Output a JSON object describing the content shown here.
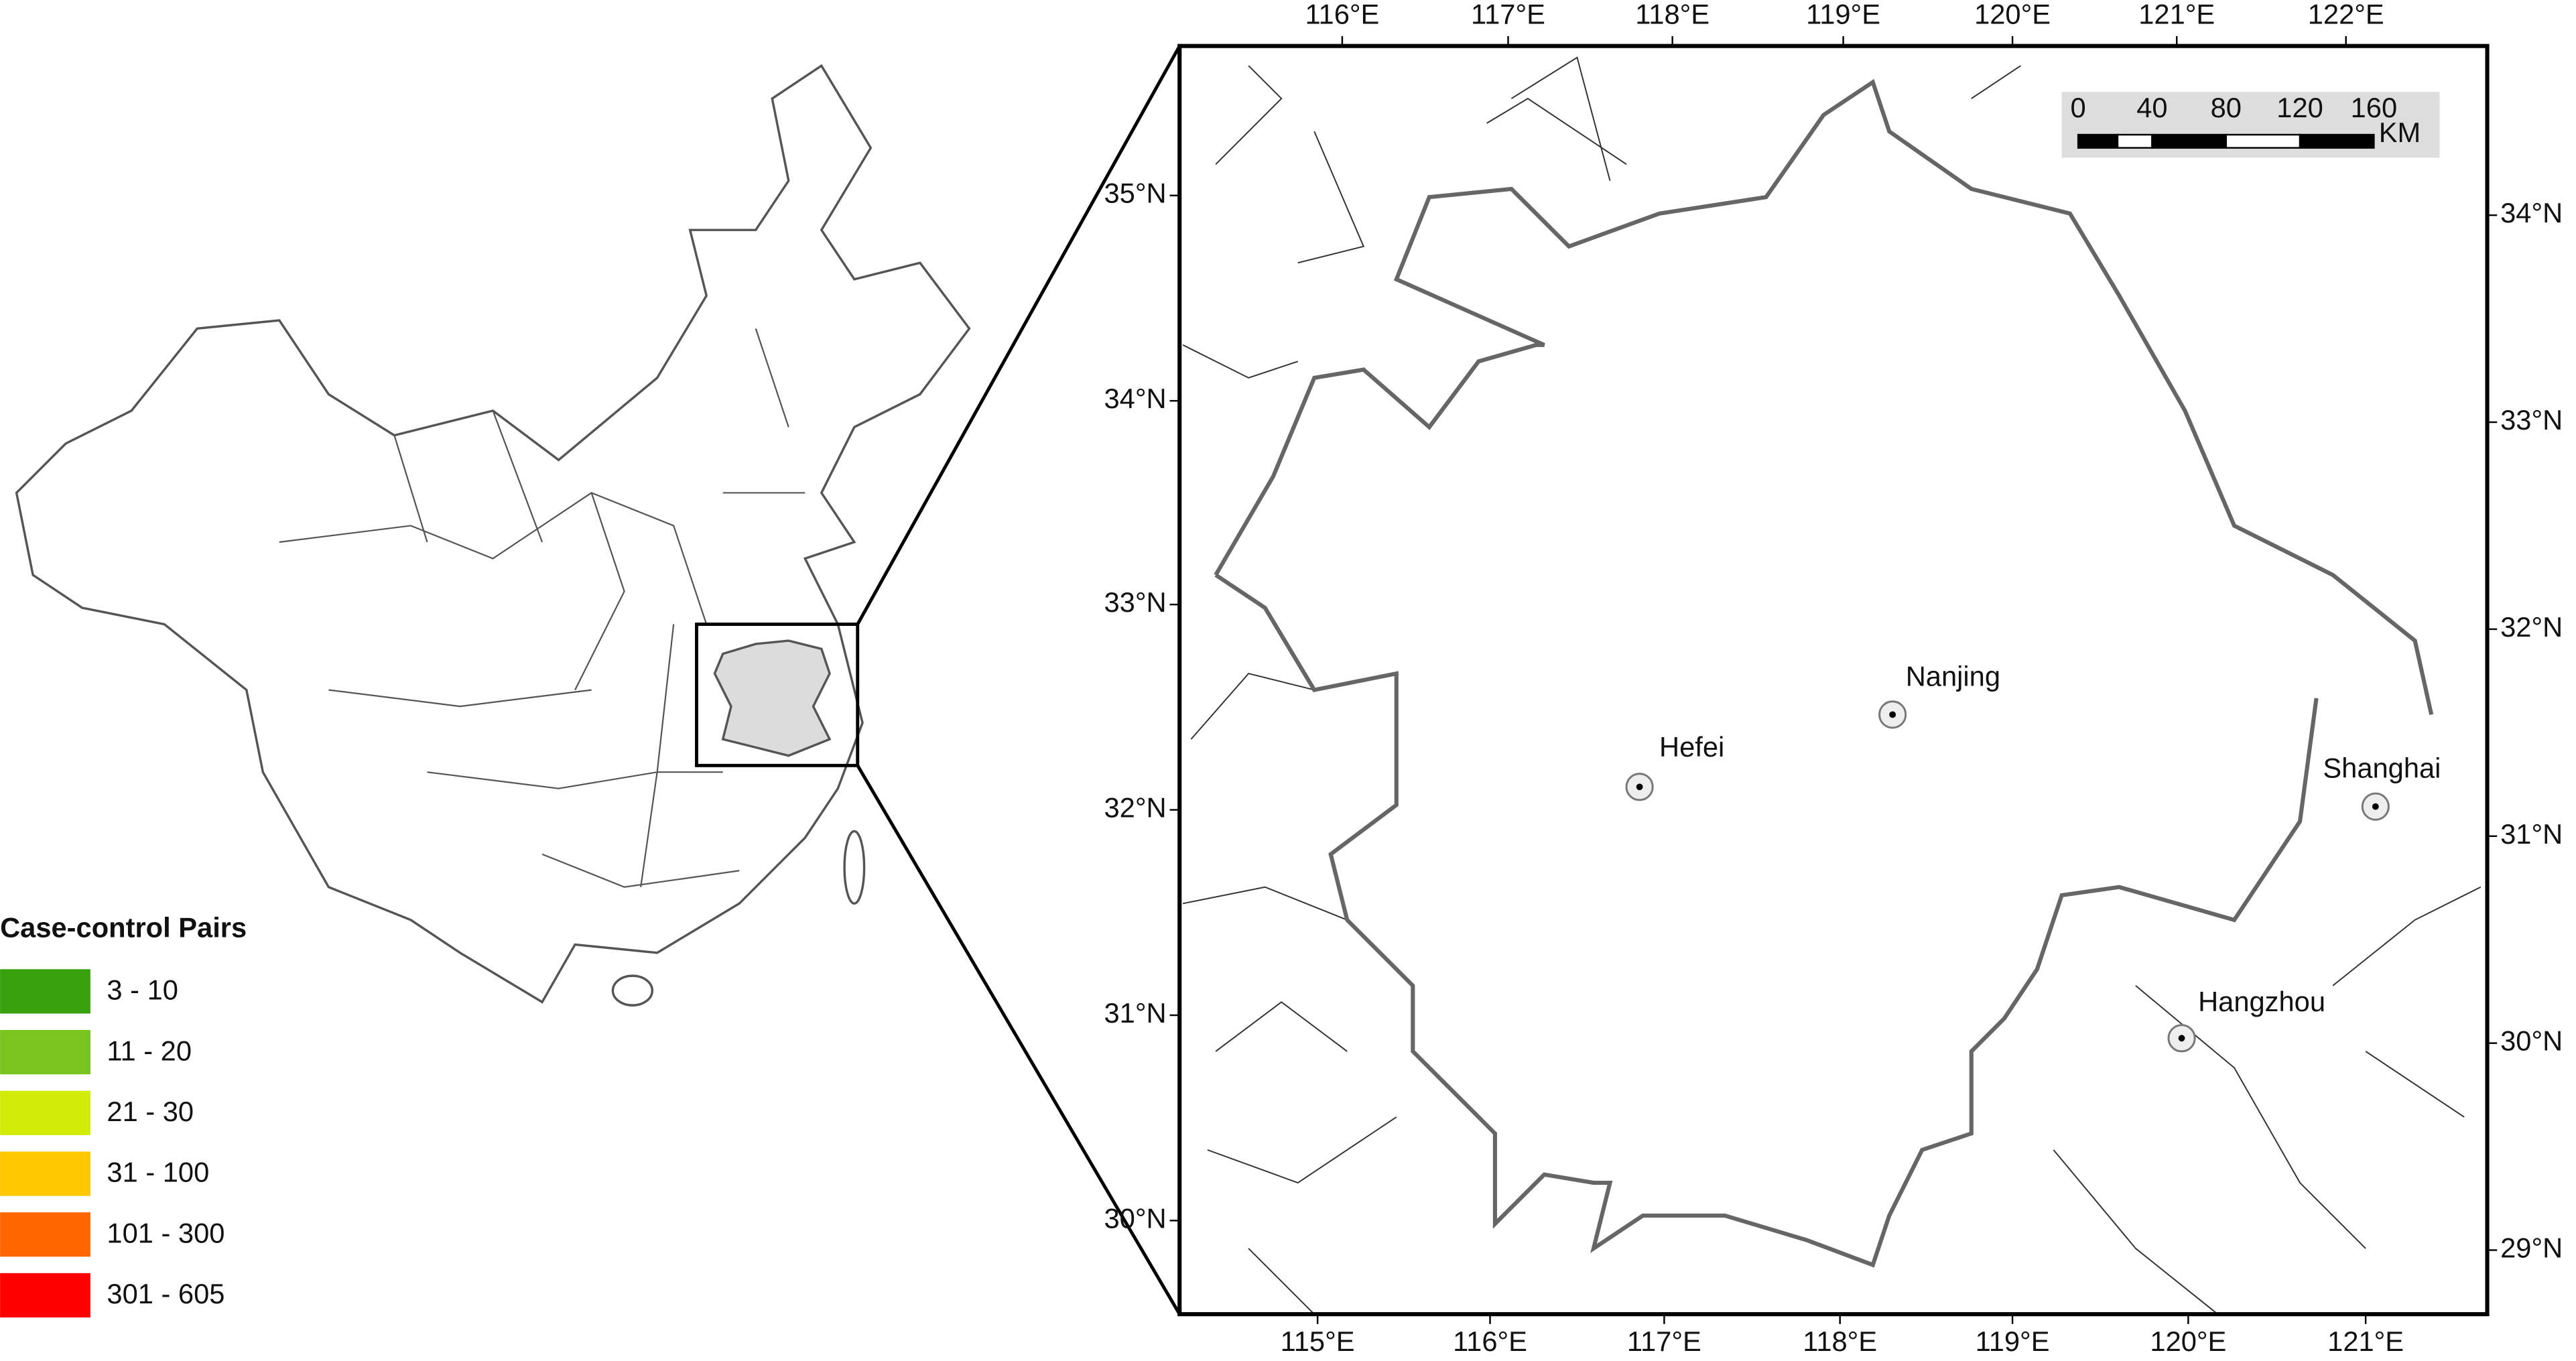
{
  "legend": {
    "title": "Case-control Pairs",
    "items": [
      {
        "label": "3 - 10",
        "color": "#3aa10e"
      },
      {
        "label": "11 - 20",
        "color": "#7ac41f"
      },
      {
        "label": "21 - 30",
        "color": "#d2ec0a"
      },
      {
        "label": "31 - 100",
        "color": "#ffc800"
      },
      {
        "label": "101 - 300",
        "color": "#ff6600"
      },
      {
        "label": "301 - 605",
        "color": "#ff0000"
      }
    ]
  },
  "axes": {
    "top": [
      "116°E",
      "117°E",
      "118°E",
      "119°E",
      "120°E",
      "121°E",
      "122°E"
    ],
    "bottom": [
      "115°E",
      "116°E",
      "117°E",
      "118°E",
      "119°E",
      "120°E",
      "121°E"
    ],
    "left": [
      "35°N",
      "34°N",
      "33°N",
      "32°N",
      "31°N",
      "30°N"
    ],
    "right": [
      "34°N",
      "33°N",
      "32°N",
      "31°N",
      "30°N",
      "29°N"
    ]
  },
  "scale_bar": {
    "labels": [
      "0",
      "40",
      "80",
      "120",
      "160"
    ],
    "unit": "KM"
  },
  "cities": [
    "Nanjing",
    "Hefei",
    "Shanghai",
    "Hangzhou"
  ]
}
